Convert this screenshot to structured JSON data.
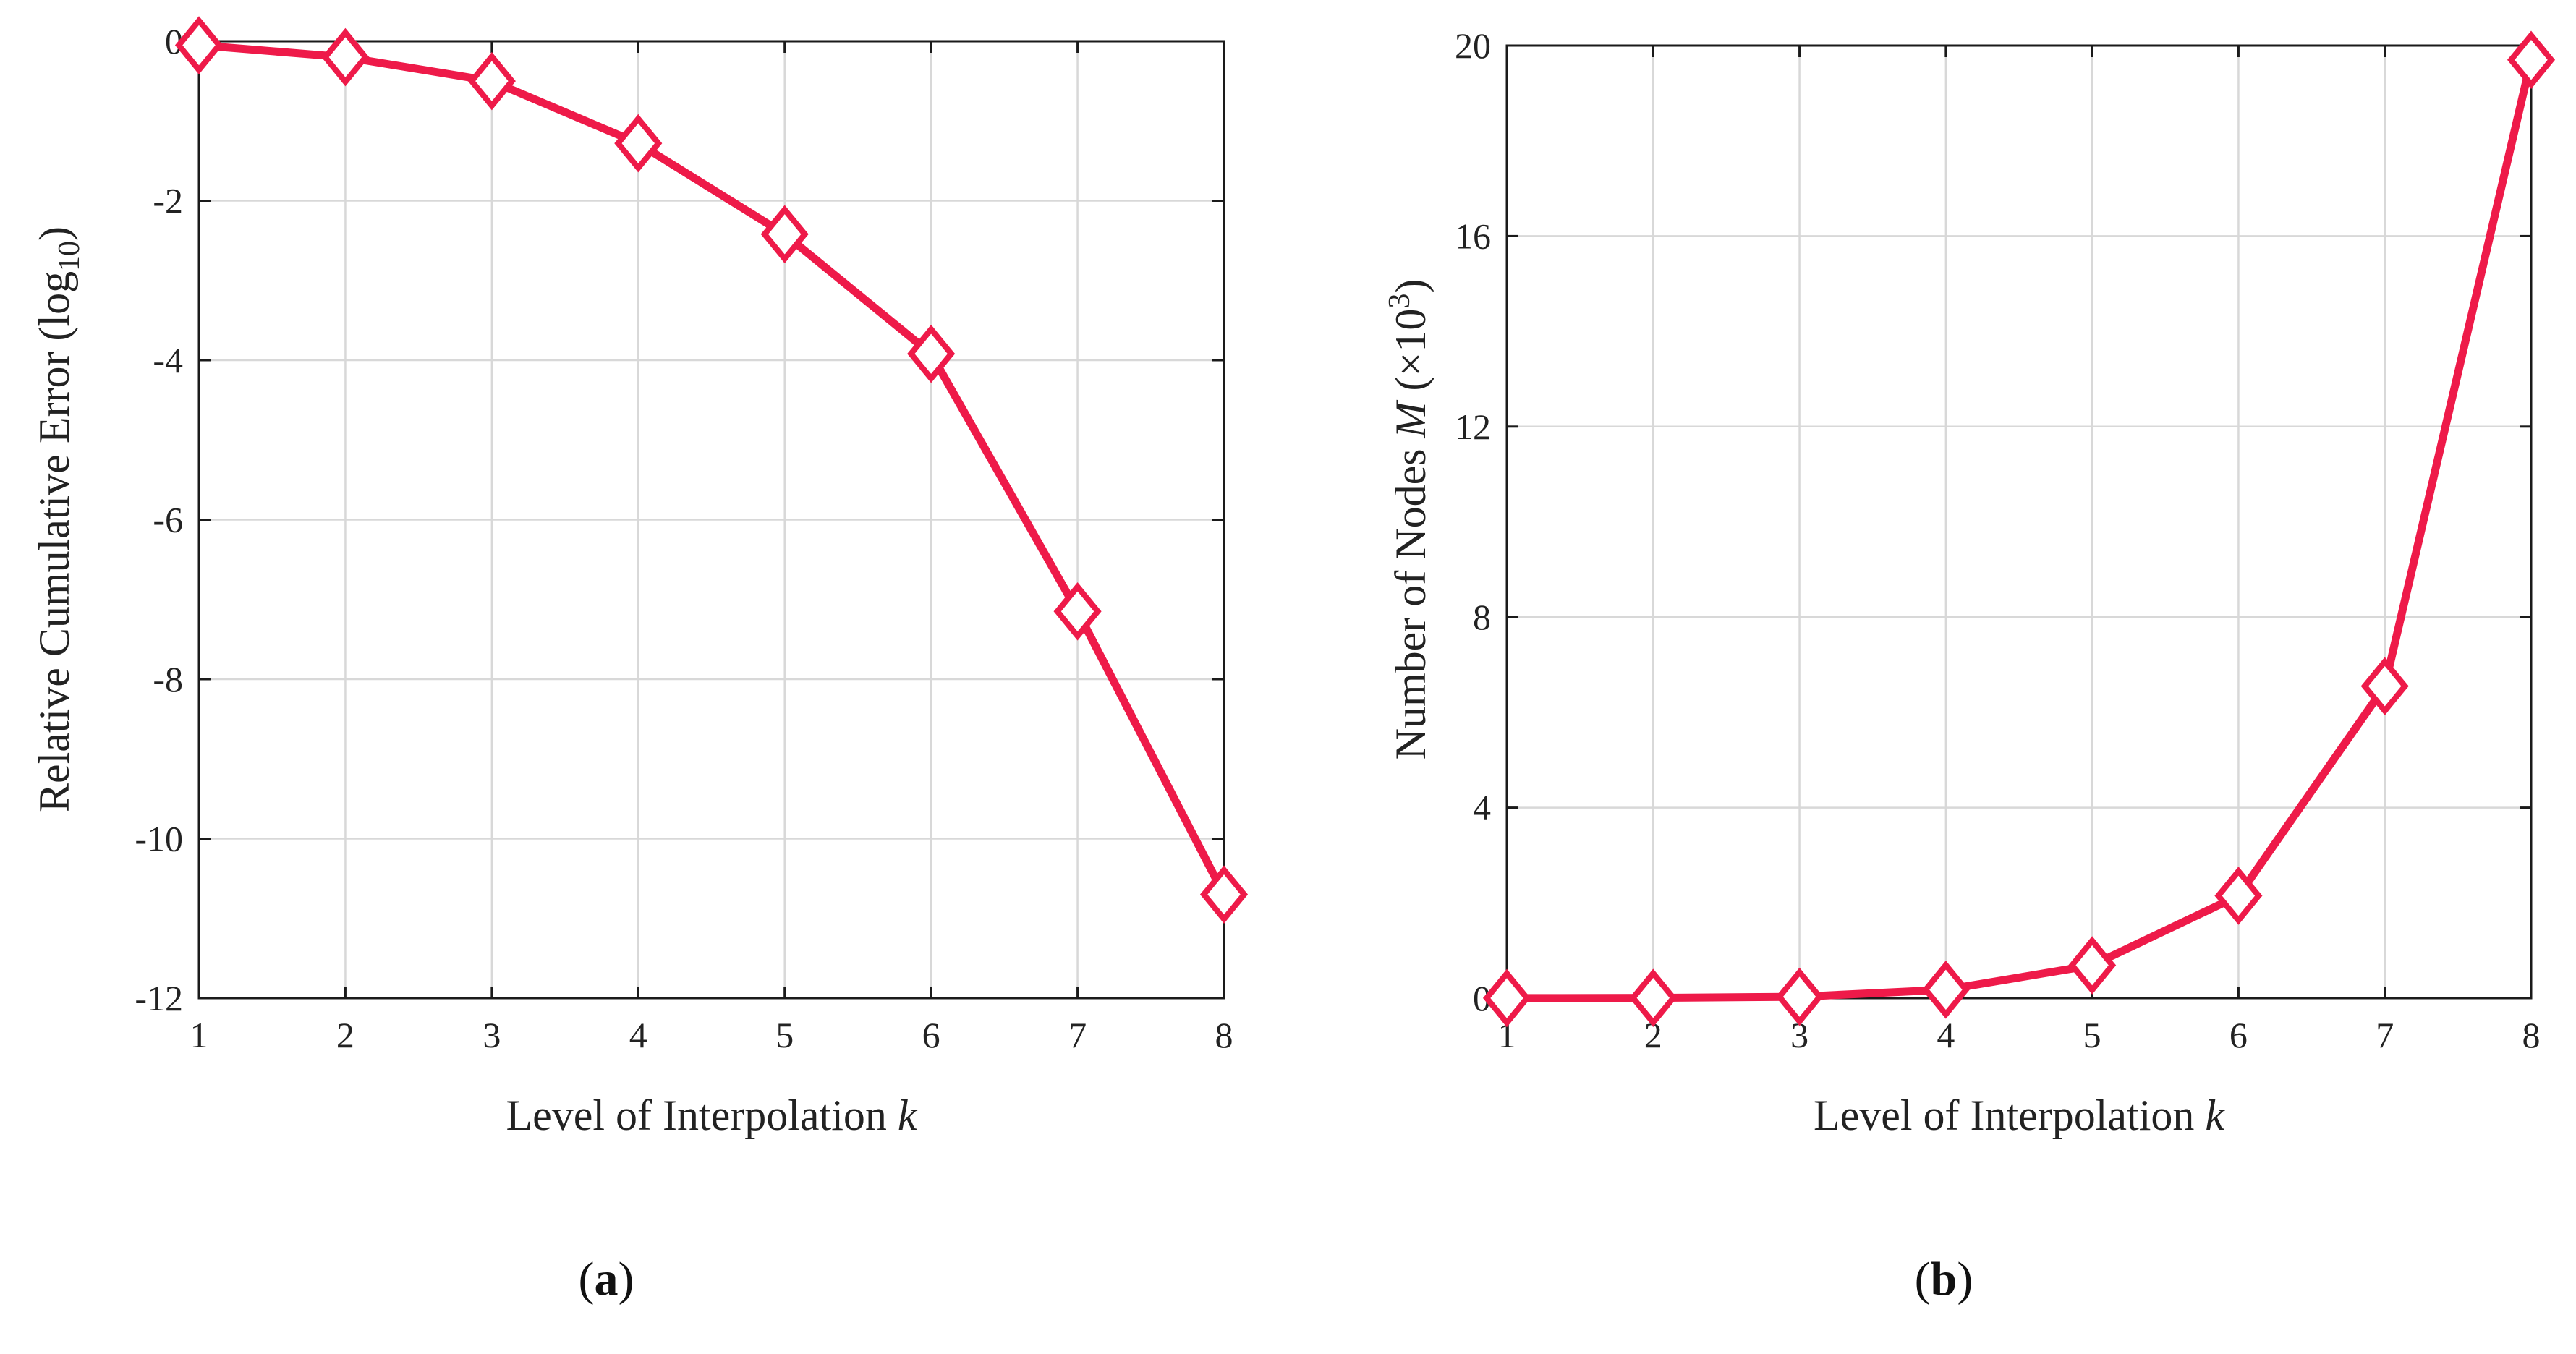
{
  "colors": {
    "series": "#ee1a49",
    "axis": "#1a1a1a",
    "grid": "#d8d8d8"
  },
  "chart_data": [
    {
      "panel_label": "a",
      "type": "line",
      "title": "",
      "xlabel": "Level of Interpolation",
      "xlabel_var": "k",
      "ylabel": "Relative Cumulative Error (log",
      "ylabel_sub": "10",
      "ylabel_close": ")",
      "x": [
        1,
        2,
        3,
        4,
        5,
        6,
        7,
        8
      ],
      "xlim": [
        1,
        8
      ],
      "ylim": [
        -12,
        0
      ],
      "xticks": [
        1,
        2,
        3,
        4,
        5,
        6,
        7,
        8
      ],
      "yticks": [
        -12,
        -10,
        -8,
        -6,
        -4,
        -2,
        0
      ],
      "ytick_labels": [
        "-12",
        "-10",
        "-8",
        "-6",
        "-4",
        "-2",
        "0"
      ],
      "grid": true,
      "marker": "diamond",
      "series": [
        {
          "name": "error",
          "values": [
            -0.05,
            -0.2,
            -0.5,
            -1.28,
            -2.42,
            -3.92,
            -7.15,
            -10.7
          ]
        }
      ]
    },
    {
      "panel_label": "b",
      "type": "line",
      "title": "",
      "xlabel": "Level of Interpolation",
      "xlabel_var": "k",
      "ylabel": "Number of Nodes",
      "ylabel_var": "M",
      "ylabel_unit": "(×10",
      "ylabel_sup": "3",
      "ylabel_close": ")",
      "x": [
        1,
        2,
        3,
        4,
        5,
        6,
        7,
        8
      ],
      "xlim": [
        1,
        8
      ],
      "ylim": [
        0,
        20
      ],
      "xticks": [
        1,
        2,
        3,
        4,
        5,
        6,
        7,
        8
      ],
      "yticks": [
        0,
        4,
        8,
        12,
        16,
        20
      ],
      "ytick_labels": [
        "0",
        "4",
        "8",
        "12",
        "16",
        "20"
      ],
      "grid": true,
      "marker": "diamond",
      "series": [
        {
          "name": "nodes",
          "values": [
            0.001,
            0.005,
            0.029,
            0.177,
            0.69,
            2.15,
            6.55,
            19.7
          ]
        }
      ]
    }
  ]
}
